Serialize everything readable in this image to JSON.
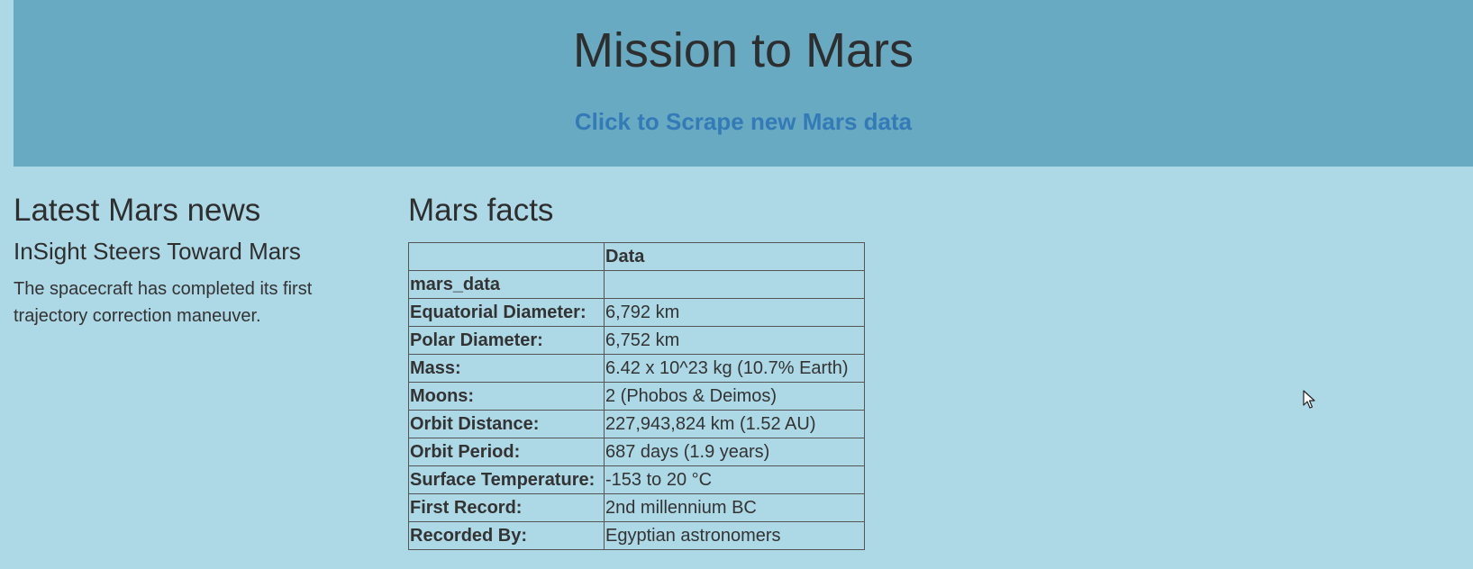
{
  "header": {
    "title": "Mission to Mars",
    "scrape_link": "Click to Scrape new Mars data"
  },
  "news": {
    "heading": "Latest Mars news",
    "article_title": "InSight Steers Toward Mars",
    "article_teaser": "The spacecraft has completed its first trajectory correction maneuver."
  },
  "facts": {
    "heading": "Mars facts",
    "column_header": "Data",
    "index_name": "mars_data",
    "rows": [
      {
        "label": "Equatorial Diameter:",
        "value": "6,792 km"
      },
      {
        "label": "Polar Diameter:",
        "value": "6,752 km"
      },
      {
        "label": "Mass:",
        "value": "6.42 x 10^23 kg (10.7% Earth)"
      },
      {
        "label": "Moons:",
        "value": "2 (Phobos & Deimos)"
      },
      {
        "label": "Orbit Distance:",
        "value": "227,943,824 km (1.52 AU)"
      },
      {
        "label": "Orbit Period:",
        "value": "687 days (1.9 years)"
      },
      {
        "label": "Surface Temperature:",
        "value": "-153 to 20 °C"
      },
      {
        "label": "First Record:",
        "value": "2nd millennium BC"
      },
      {
        "label": "Recorded By:",
        "value": "Egyptian astronomers"
      }
    ]
  },
  "colors": {
    "page_background": "#add8e6",
    "header_background": "#67aac2",
    "link": "#337ab7",
    "text": "#333333"
  },
  "icons": {
    "cursor": "mouse-pointer-icon"
  }
}
